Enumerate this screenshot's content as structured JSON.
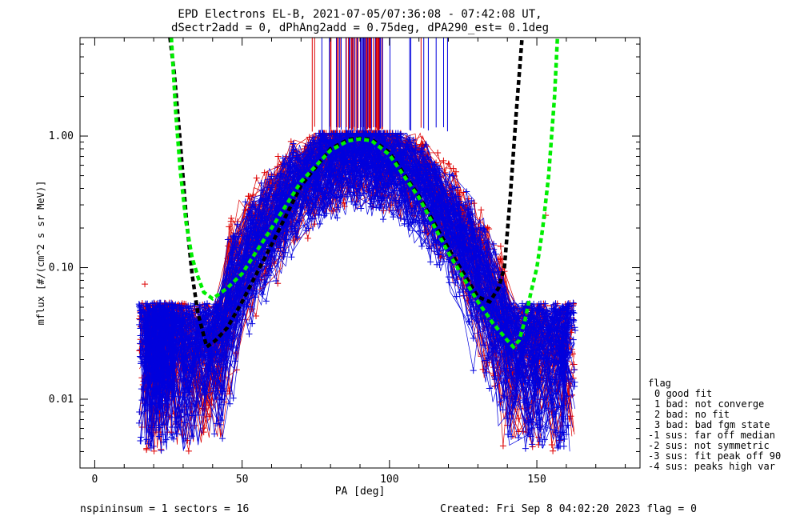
{
  "chart_data": {
    "type": "line",
    "title": "EPD Electrons EL-B, 2021-07-05/07:36:08 - 07:42:08 UT,",
    "subtitle": "dSectr2add = 0, dPhAng2add = 0.75deg, dPA290_est=   0.1deg",
    "xlabel": "PA [deg]",
    "ylabel": "mflux [#/(cm^2 s sr MeV)]",
    "xlim": [
      -5,
      185
    ],
    "ylim": [
      0.003,
      5.6
    ],
    "yscale": "log",
    "x_ticks": [
      0,
      50,
      100,
      150
    ],
    "x_tick_labels": [
      "0",
      "50",
      "100",
      "150"
    ],
    "y_ticks": [
      0.01,
      0.1,
      1.0
    ],
    "y_tick_labels": [
      "0.01",
      "0.10",
      "1.00"
    ],
    "colors": {
      "red": "#dd0000",
      "blue": "#0000dd",
      "black": "#000000",
      "green": "#00ee00"
    },
    "trace_series": [
      {
        "color": "red",
        "count": 80,
        "peak": 0.95
      },
      {
        "color": "blue",
        "count": 120,
        "peak": 0.85
      }
    ],
    "fit_curves": [
      {
        "color": "black",
        "dashed": true,
        "x": [
          25.5,
          27,
          29,
          31,
          33,
          35,
          38,
          41,
          45,
          50,
          60,
          70,
          80,
          86,
          90,
          94,
          100,
          110,
          120,
          130,
          134,
          137,
          139,
          141,
          143,
          145
        ],
        "y": [
          5.6,
          3.0,
          0.9,
          0.25,
          0.09,
          0.045,
          0.025,
          0.028,
          0.035,
          0.055,
          0.15,
          0.42,
          0.8,
          0.94,
          0.96,
          0.94,
          0.75,
          0.35,
          0.14,
          0.06,
          0.055,
          0.07,
          0.1,
          0.35,
          1.5,
          5.6
        ]
      },
      {
        "color": "green",
        "dashed": true,
        "x": [
          26,
          27.5,
          29,
          31,
          33,
          35,
          37,
          40,
          45,
          50,
          60,
          70,
          80,
          86,
          90,
          94,
          100,
          110,
          120,
          130,
          135,
          140,
          142,
          144,
          146,
          148,
          150,
          152,
          154,
          156,
          157
        ],
        "y": [
          5.6,
          1.5,
          0.55,
          0.22,
          0.12,
          0.085,
          0.065,
          0.058,
          0.07,
          0.09,
          0.2,
          0.45,
          0.78,
          0.92,
          0.95,
          0.92,
          0.72,
          0.34,
          0.13,
          0.055,
          0.038,
          0.028,
          0.025,
          0.028,
          0.04,
          0.065,
          0.1,
          0.2,
          0.5,
          2.0,
          5.6
        ]
      }
    ],
    "outlier_markers": [
      {
        "x": 17,
        "y": 0.075,
        "color": "red"
      },
      {
        "x": 153,
        "y": 0.25,
        "color": "red"
      }
    ],
    "spike_region": {
      "x_range": [
        72,
        116
      ]
    },
    "grid": false,
    "legend": {
      "position": "right",
      "header": "flag",
      "items": [
        "0 good fit",
        "1 bad: not converge",
        "2 bad: no fit",
        "3 bad: bad fgm state",
        "-1 sus: far off median",
        "-2 sus: not symmetric",
        "-3 sus: fit peak off 90",
        "-4 sus: peaks high var"
      ]
    }
  },
  "footer": {
    "left": "nspininsum =  1  sectors = 16",
    "right": "Created: Fri Sep  8 04:02:20 2023   flag = 0"
  }
}
